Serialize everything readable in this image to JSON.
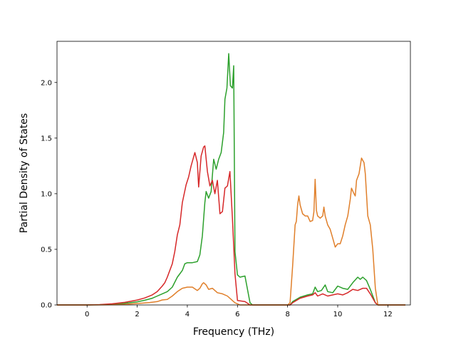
{
  "chart_data": {
    "type": "line",
    "title": "",
    "xlabel": "Frequency (THz)",
    "ylabel": "Partial Density of States",
    "xlim": [
      -1.2,
      12.9
    ],
    "ylim": [
      0.0,
      2.37
    ],
    "xticks": [
      0,
      2,
      4,
      6,
      8,
      10,
      12
    ],
    "yticks": [
      0.0,
      0.5,
      1.0,
      1.5,
      2.0
    ],
    "xtick_labels": [
      "0",
      "2",
      "4",
      "6",
      "8",
      "10",
      "12"
    ],
    "ytick_labels": [
      "0.0",
      "0.5",
      "1.0",
      "1.5",
      "2.0"
    ],
    "grid": false,
    "legend": "none",
    "series": [
      {
        "color": "#2ca02c",
        "points": [
          [
            -1.2,
            0
          ],
          [
            0,
            0
          ],
          [
            0.5,
            0.002
          ],
          [
            1,
            0.006
          ],
          [
            1.5,
            0.014
          ],
          [
            2,
            0.028
          ],
          [
            2.3,
            0.042
          ],
          [
            2.6,
            0.06
          ],
          [
            2.8,
            0.08
          ],
          [
            3,
            0.1
          ],
          [
            3.2,
            0.12
          ],
          [
            3.4,
            0.16
          ],
          [
            3.6,
            0.25
          ],
          [
            3.8,
            0.31
          ],
          [
            3.9,
            0.37
          ],
          [
            4,
            0.38
          ],
          [
            4.2,
            0.38
          ],
          [
            4.4,
            0.39
          ],
          [
            4.5,
            0.45
          ],
          [
            4.6,
            0.62
          ],
          [
            4.7,
            0.92
          ],
          [
            4.75,
            1.02
          ],
          [
            4.85,
            0.96
          ],
          [
            4.95,
            1.02
          ],
          [
            5.05,
            1.31
          ],
          [
            5.15,
            1.22
          ],
          [
            5.25,
            1.31
          ],
          [
            5.35,
            1.37
          ],
          [
            5.45,
            1.55
          ],
          [
            5.5,
            1.85
          ],
          [
            5.58,
            1.95
          ],
          [
            5.65,
            2.26
          ],
          [
            5.72,
            1.97
          ],
          [
            5.8,
            1.95
          ],
          [
            5.85,
            2.15
          ],
          [
            5.9,
            0.48
          ],
          [
            6,
            0.27
          ],
          [
            6.1,
            0.25
          ],
          [
            6.3,
            0.26
          ],
          [
            6.5,
            0.02
          ],
          [
            6.6,
            0
          ],
          [
            8.1,
            0
          ],
          [
            8.2,
            0.03
          ],
          [
            8.5,
            0.07
          ],
          [
            8.8,
            0.09
          ],
          [
            9,
            0.1
          ],
          [
            9.1,
            0.16
          ],
          [
            9.2,
            0.12
          ],
          [
            9.35,
            0.13
          ],
          [
            9.5,
            0.18
          ],
          [
            9.6,
            0.12
          ],
          [
            9.8,
            0.11
          ],
          [
            10,
            0.17
          ],
          [
            10.2,
            0.15
          ],
          [
            10.4,
            0.14
          ],
          [
            10.6,
            0.2
          ],
          [
            10.8,
            0.25
          ],
          [
            10.9,
            0.23
          ],
          [
            11,
            0.25
          ],
          [
            11.15,
            0.22
          ],
          [
            11.3,
            0.14
          ],
          [
            11.5,
            0.02
          ],
          [
            11.6,
            0
          ],
          [
            12.7,
            0
          ]
        ]
      },
      {
        "color": "#d62728",
        "points": [
          [
            -1.2,
            0
          ],
          [
            0,
            0
          ],
          [
            0.5,
            0.003
          ],
          [
            1,
            0.01
          ],
          [
            1.5,
            0.023
          ],
          [
            2,
            0.044
          ],
          [
            2.3,
            0.063
          ],
          [
            2.6,
            0.09
          ],
          [
            2.8,
            0.12
          ],
          [
            3,
            0.17
          ],
          [
            3.1,
            0.2
          ],
          [
            3.2,
            0.25
          ],
          [
            3.4,
            0.37
          ],
          [
            3.5,
            0.48
          ],
          [
            3.6,
            0.63
          ],
          [
            3.7,
            0.72
          ],
          [
            3.8,
            0.92
          ],
          [
            3.95,
            1.08
          ],
          [
            4.05,
            1.15
          ],
          [
            4.15,
            1.25
          ],
          [
            4.3,
            1.37
          ],
          [
            4.4,
            1.28
          ],
          [
            4.45,
            1.06
          ],
          [
            4.55,
            1.34
          ],
          [
            4.65,
            1.42
          ],
          [
            4.7,
            1.43
          ],
          [
            4.8,
            1.2
          ],
          [
            4.9,
            1.07
          ],
          [
            5,
            1.12
          ],
          [
            5.1,
            1.0
          ],
          [
            5.2,
            1.12
          ],
          [
            5.3,
            0.82
          ],
          [
            5.4,
            0.84
          ],
          [
            5.5,
            1.05
          ],
          [
            5.6,
            1.07
          ],
          [
            5.7,
            1.2
          ],
          [
            5.8,
            0.78
          ],
          [
            5.9,
            0.28
          ],
          [
            6,
            0.04
          ],
          [
            6.3,
            0.03
          ],
          [
            6.5,
            0
          ],
          [
            8.1,
            0
          ],
          [
            8.2,
            0.02
          ],
          [
            8.5,
            0.06
          ],
          [
            8.8,
            0.08
          ],
          [
            9,
            0.09
          ],
          [
            9.1,
            0.11
          ],
          [
            9.2,
            0.08
          ],
          [
            9.4,
            0.1
          ],
          [
            9.6,
            0.08
          ],
          [
            9.8,
            0.09
          ],
          [
            10,
            0.1
          ],
          [
            10.2,
            0.09
          ],
          [
            10.4,
            0.11
          ],
          [
            10.6,
            0.14
          ],
          [
            10.8,
            0.13
          ],
          [
            11,
            0.15
          ],
          [
            11.15,
            0.15
          ],
          [
            11.3,
            0.1
          ],
          [
            11.5,
            0.02
          ],
          [
            11.6,
            0
          ],
          [
            12.7,
            0
          ]
        ]
      },
      {
        "color": "#e07f2a",
        "points": [
          [
            -1.2,
            0
          ],
          [
            0,
            0
          ],
          [
            1,
            0.002
          ],
          [
            1.5,
            0.006
          ],
          [
            2,
            0.013
          ],
          [
            2.5,
            0.022
          ],
          [
            2.8,
            0.03
          ],
          [
            3,
            0.045
          ],
          [
            3.2,
            0.05
          ],
          [
            3.4,
            0.08
          ],
          [
            3.6,
            0.12
          ],
          [
            3.8,
            0.15
          ],
          [
            4,
            0.16
          ],
          [
            4.2,
            0.16
          ],
          [
            4.4,
            0.13
          ],
          [
            4.5,
            0.15
          ],
          [
            4.6,
            0.19
          ],
          [
            4.65,
            0.2
          ],
          [
            4.75,
            0.18
          ],
          [
            4.85,
            0.14
          ],
          [
            5,
            0.15
          ],
          [
            5.2,
            0.11
          ],
          [
            5.4,
            0.1
          ],
          [
            5.6,
            0.08
          ],
          [
            5.8,
            0.04
          ],
          [
            5.9,
            0.02
          ],
          [
            6,
            0.01
          ],
          [
            6.1,
            0
          ],
          [
            8.0,
            0
          ],
          [
            8.1,
            0.02
          ],
          [
            8.2,
            0.35
          ],
          [
            8.3,
            0.72
          ],
          [
            8.35,
            0.75
          ],
          [
            8.4,
            0.9
          ],
          [
            8.45,
            0.98
          ],
          [
            8.5,
            0.9
          ],
          [
            8.6,
            0.82
          ],
          [
            8.7,
            0.8
          ],
          [
            8.8,
            0.8
          ],
          [
            8.9,
            0.75
          ],
          [
            9,
            0.76
          ],
          [
            9.05,
            0.84
          ],
          [
            9.1,
            1.13
          ],
          [
            9.15,
            0.85
          ],
          [
            9.2,
            0.8
          ],
          [
            9.3,
            0.78
          ],
          [
            9.4,
            0.8
          ],
          [
            9.45,
            0.88
          ],
          [
            9.5,
            0.8
          ],
          [
            9.6,
            0.72
          ],
          [
            9.7,
            0.68
          ],
          [
            9.8,
            0.6
          ],
          [
            9.9,
            0.52
          ],
          [
            10,
            0.55
          ],
          [
            10.1,
            0.55
          ],
          [
            10.2,
            0.62
          ],
          [
            10.3,
            0.72
          ],
          [
            10.4,
            0.8
          ],
          [
            10.5,
            0.95
          ],
          [
            10.55,
            1.05
          ],
          [
            10.65,
            1.0
          ],
          [
            10.7,
            0.98
          ],
          [
            10.75,
            1.12
          ],
          [
            10.85,
            1.18
          ],
          [
            10.95,
            1.32
          ],
          [
            11.05,
            1.28
          ],
          [
            11.1,
            1.18
          ],
          [
            11.2,
            0.8
          ],
          [
            11.3,
            0.72
          ],
          [
            11.4,
            0.5
          ],
          [
            11.5,
            0.15
          ],
          [
            11.6,
            0
          ],
          [
            12.7,
            0
          ]
        ]
      }
    ]
  }
}
